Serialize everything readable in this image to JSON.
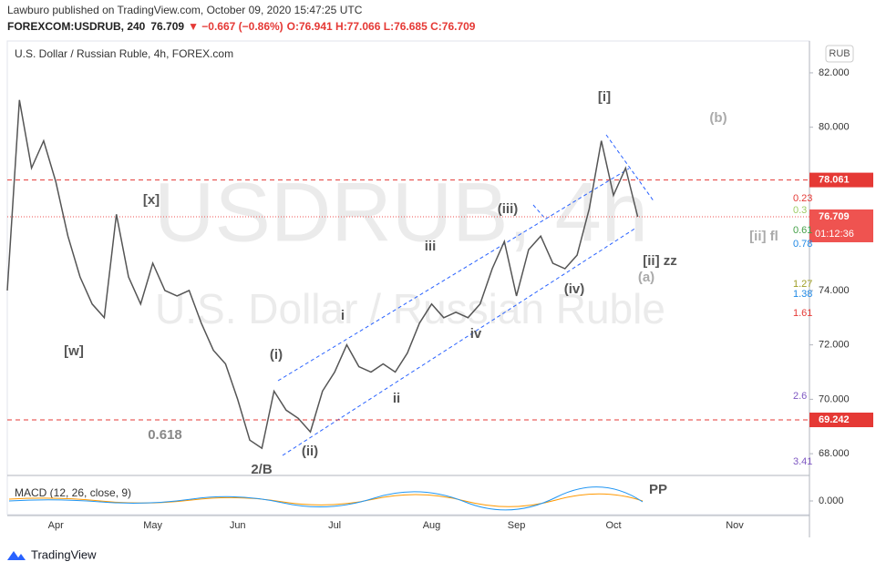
{
  "header": {
    "line1": "Lawburo published on TradingView.com, October 09, 2020 15:47:25 UTC",
    "symbol": "FOREXCOM:USDRUB, 240",
    "last": "76.709",
    "change": "▼ −0.667 (−0.86%)",
    "ohlc": "O:76.941 H:77.066 L:76.685 C:76.709"
  },
  "footer": "TradingView",
  "chart_data": {
    "type": "line",
    "title": "U.S. Dollar / Russian Ruble, 4h, FOREX.com",
    "watermark": "USDRUB, 4h",
    "watermark2": "U.S. Dollar / Russian Ruble",
    "currency": "RUB",
    "color": "#555555",
    "grid": false,
    "categories": [
      null,
      null,
      null,
      null,
      "Apr",
      null,
      null,
      null,
      null,
      null,
      null,
      null,
      "May",
      null,
      null,
      null,
      null,
      null,
      null,
      "Jun",
      null,
      null,
      null,
      null,
      null,
      null,
      null,
      "Jul",
      null,
      null,
      null,
      null,
      null,
      null,
      null,
      "Aug",
      null,
      null,
      null,
      null,
      null,
      null,
      "Sep",
      null,
      null,
      null,
      null,
      null,
      null,
      null,
      "Oct",
      null,
      null,
      null,
      null,
      null,
      null,
      null,
      null,
      null,
      "Nov"
    ],
    "values": [
      74.0,
      81.0,
      78.5,
      79.5,
      78.0,
      76.0,
      74.5,
      73.5,
      73.0,
      76.8,
      74.5,
      73.5,
      75.0,
      74.0,
      73.8,
      74.0,
      72.8,
      71.8,
      71.3,
      70.0,
      68.5,
      68.2,
      70.3,
      69.6,
      69.3,
      68.8,
      70.3,
      71.0,
      72.0,
      71.2,
      71.0,
      71.3,
      71.0,
      71.7,
      72.8,
      73.5,
      73.0,
      73.2,
      73.0,
      73.5,
      74.8,
      75.8,
      73.8,
      75.5,
      76.0,
      75.0,
      74.8,
      75.3,
      77.0,
      79.5,
      77.5,
      78.5,
      76.709,
      null,
      null,
      null,
      null,
      null,
      null,
      null,
      null
    ],
    "ylim": [
      67.2,
      83.17
    ],
    "yticks": [
      {
        "value": 68,
        "label": "68.000"
      },
      {
        "value": 70,
        "label": "70.000"
      },
      {
        "value": 72,
        "label": "72.000"
      },
      {
        "value": 74,
        "label": "74.000"
      },
      {
        "value": 76,
        "label": "76.000"
      },
      {
        "value": 78,
        "label": "78.000"
      },
      {
        "value": 80,
        "label": "80.000"
      },
      {
        "value": 82,
        "label": "82.000"
      }
    ],
    "levels": [
      {
        "value": 78.061,
        "label": "78.061",
        "color": "#e53935"
      },
      {
        "value": 69.242,
        "label": "69.242",
        "color": "#e53935"
      }
    ],
    "last_price": {
      "value": 76.709,
      "label": "76.709",
      "countdown": "01:12:36",
      "color": "#ef5350"
    },
    "fib_labels": [
      "0.23",
      "0.3",
      "0.61",
      "0.78",
      "1.27",
      "1.38",
      "1.61",
      "2.6",
      "3.41"
    ],
    "annotations": [
      "[i]",
      "(b)",
      "[x]",
      "(iii)",
      "iii",
      "[ii] fl",
      "[ii] zz",
      "(a)",
      "(iv)",
      "i",
      "iv",
      "[w]",
      "(i)",
      "ii",
      "0.618",
      "(ii)",
      "2/B",
      "PP"
    ],
    "indicator": {
      "name": "MACD (12, 26, close, 9)",
      "ytick": {
        "value": 0,
        "label": "0.000"
      }
    }
  }
}
